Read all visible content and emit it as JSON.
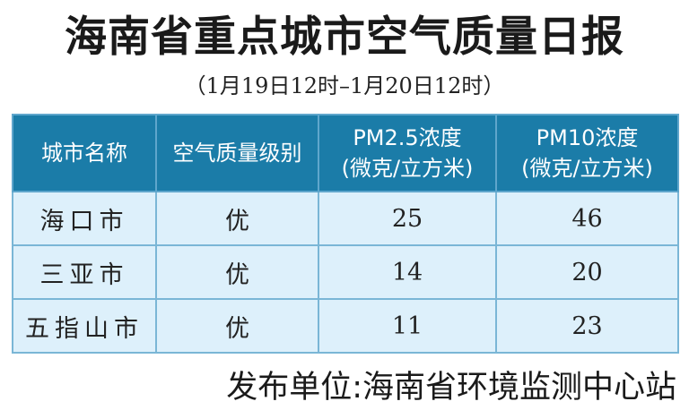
{
  "title": "海南省重点城市空气质量日报",
  "subtitle": "（1月19日12时–1月20日12时）",
  "table": {
    "headers": [
      {
        "line1": "城市名称",
        "line2": ""
      },
      {
        "line1": "空气质量级别",
        "line2": ""
      },
      {
        "line1": "PM2.5浓度",
        "line2": "(微克/立方米)"
      },
      {
        "line1": "PM10浓度",
        "line2": "(微克/立方米)"
      }
    ],
    "rows": [
      {
        "city": "海口市",
        "level": "优",
        "pm25": "25",
        "pm10": "46"
      },
      {
        "city": "三亚市",
        "level": "优",
        "pm25": "14",
        "pm10": "20"
      },
      {
        "city": "五指山市",
        "level": "优",
        "pm25": "11",
        "pm10": "23"
      }
    ]
  },
  "footer": "发布单位:海南省环境监测中心站",
  "colors": {
    "header_bg": "#1b7ca8",
    "row_bg": "#ddf0fb",
    "border": "#7ab6d6"
  }
}
